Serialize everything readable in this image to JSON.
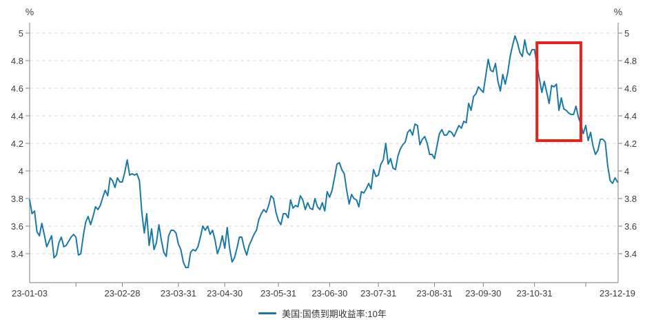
{
  "units": {
    "left": "%",
    "right": "%"
  },
  "legend": {
    "label": "美国:国债到期收益率:10年"
  },
  "colors": {
    "line": "#1878a8",
    "grid": "#d9d9d9",
    "axis": "#7f7f7f",
    "tick_label": "#3c3c3c",
    "unit_label": "#3c3c3c",
    "highlight": "#e8211a",
    "background": "#ffffff",
    "legend_text": "#333333"
  },
  "chart_data": {
    "type": "line",
    "title": "",
    "ylabel_unit": "%",
    "grid": "dashed-horizontal",
    "legend_position": "bottom-center",
    "ylim": [
      3.19,
      5.07
    ],
    "y_ticks": [
      {
        "value": 5.0,
        "label": "5"
      },
      {
        "value": 4.8,
        "label": "4.8"
      },
      {
        "value": 4.6,
        "label": "4.6"
      },
      {
        "value": 4.4,
        "label": "4.4"
      },
      {
        "value": 4.2,
        "label": "4.2"
      },
      {
        "value": 4.0,
        "label": "4"
      },
      {
        "value": 3.8,
        "label": "3.8"
      },
      {
        "value": 3.6,
        "label": "3.6"
      },
      {
        "value": 3.4,
        "label": "3.4"
      }
    ],
    "x_ticks": [
      {
        "label": "23-01-03",
        "date": "23-01-03",
        "show_tick": false
      },
      {
        "label": "",
        "date": "23-01-31",
        "show_tick": true
      },
      {
        "label": "23-02-28",
        "date": "23-02-28",
        "show_tick": true
      },
      {
        "label": "23-03-31",
        "date": "23-03-31",
        "show_tick": true
      },
      {
        "label": "23-04-30",
        "date": "23-04-28",
        "show_tick": true
      },
      {
        "label": "23-05-31",
        "date": "23-05-31",
        "show_tick": true
      },
      {
        "label": "23-06-30",
        "date": "23-06-30",
        "show_tick": true
      },
      {
        "label": "23-07-31",
        "date": "23-07-31",
        "show_tick": true
      },
      {
        "label": "23-08-31",
        "date": "23-08-31",
        "show_tick": true
      },
      {
        "label": "23-09-30",
        "date": "23-09-29",
        "show_tick": true
      },
      {
        "label": "23-10-31",
        "date": "23-10-31",
        "show_tick": true
      },
      {
        "label": "",
        "date": "23-11-30",
        "show_tick": true
      },
      {
        "label": "23-12-19",
        "date": "23-12-19",
        "show_tick": false
      }
    ],
    "highlight_box": {
      "start_date": "23-11-01",
      "end_date": "23-11-28",
      "value_top": 4.93,
      "value_bottom": 4.22
    },
    "series": [
      {
        "name": "美国:国债到期收益率:10年",
        "dates": [
          "23-01-03",
          "23-01-04",
          "23-01-05",
          "23-01-06",
          "23-01-09",
          "23-01-10",
          "23-01-11",
          "23-01-12",
          "23-01-13",
          "23-01-17",
          "23-01-18",
          "23-01-19",
          "23-01-20",
          "23-01-23",
          "23-01-24",
          "23-01-25",
          "23-01-26",
          "23-01-27",
          "23-01-30",
          "23-01-31",
          "23-02-01",
          "23-02-02",
          "23-02-03",
          "23-02-06",
          "23-02-07",
          "23-02-08",
          "23-02-09",
          "23-02-10",
          "23-02-13",
          "23-02-14",
          "23-02-15",
          "23-02-16",
          "23-02-17",
          "23-02-21",
          "23-02-22",
          "23-02-23",
          "23-02-24",
          "23-02-27",
          "23-02-28",
          "23-03-01",
          "23-03-02",
          "23-03-03",
          "23-03-06",
          "23-03-07",
          "23-03-08",
          "23-03-09",
          "23-03-10",
          "23-03-13",
          "23-03-14",
          "23-03-15",
          "23-03-16",
          "23-03-17",
          "23-03-20",
          "23-03-21",
          "23-03-22",
          "23-03-23",
          "23-03-24",
          "23-03-27",
          "23-03-28",
          "23-03-29",
          "23-03-30",
          "23-03-31",
          "23-04-03",
          "23-04-04",
          "23-04-05",
          "23-04-06",
          "23-04-10",
          "23-04-11",
          "23-04-12",
          "23-04-13",
          "23-04-14",
          "23-04-17",
          "23-04-18",
          "23-04-19",
          "23-04-20",
          "23-04-21",
          "23-04-24",
          "23-04-25",
          "23-04-26",
          "23-04-27",
          "23-04-28",
          "23-05-01",
          "23-05-02",
          "23-05-03",
          "23-05-04",
          "23-05-05",
          "23-05-08",
          "23-05-09",
          "23-05-10",
          "23-05-11",
          "23-05-12",
          "23-05-15",
          "23-05-16",
          "23-05-17",
          "23-05-18",
          "23-05-19",
          "23-05-22",
          "23-05-23",
          "23-05-24",
          "23-05-25",
          "23-05-26",
          "23-05-30",
          "23-05-31",
          "23-06-01",
          "23-06-02",
          "23-06-05",
          "23-06-06",
          "23-06-07",
          "23-06-08",
          "23-06-09",
          "23-06-12",
          "23-06-13",
          "23-06-14",
          "23-06-15",
          "23-06-16",
          "23-06-20",
          "23-06-21",
          "23-06-22",
          "23-06-23",
          "23-06-26",
          "23-06-27",
          "23-06-28",
          "23-06-29",
          "23-06-30",
          "23-07-03",
          "23-07-05",
          "23-07-06",
          "23-07-07",
          "23-07-10",
          "23-07-11",
          "23-07-12",
          "23-07-13",
          "23-07-14",
          "23-07-17",
          "23-07-18",
          "23-07-19",
          "23-07-20",
          "23-07-21",
          "23-07-24",
          "23-07-25",
          "23-07-26",
          "23-07-27",
          "23-07-28",
          "23-07-31",
          "23-08-01",
          "23-08-02",
          "23-08-03",
          "23-08-04",
          "23-08-07",
          "23-08-08",
          "23-08-09",
          "23-08-10",
          "23-08-11",
          "23-08-14",
          "23-08-15",
          "23-08-16",
          "23-08-17",
          "23-08-18",
          "23-08-21",
          "23-08-22",
          "23-08-23",
          "23-08-24",
          "23-08-25",
          "23-08-28",
          "23-08-29",
          "23-08-30",
          "23-08-31",
          "23-09-01",
          "23-09-05",
          "23-09-06",
          "23-09-07",
          "23-09-08",
          "23-09-11",
          "23-09-12",
          "23-09-13",
          "23-09-14",
          "23-09-15",
          "23-09-18",
          "23-09-19",
          "23-09-20",
          "23-09-21",
          "23-09-22",
          "23-09-25",
          "23-09-26",
          "23-09-27",
          "23-09-28",
          "23-09-29",
          "23-10-02",
          "23-10-03",
          "23-10-04",
          "23-10-05",
          "23-10-06",
          "23-10-10",
          "23-10-11",
          "23-10-12",
          "23-10-13",
          "23-10-16",
          "23-10-17",
          "23-10-18",
          "23-10-19",
          "23-10-20",
          "23-10-23",
          "23-10-24",
          "23-10-25",
          "23-10-26",
          "23-10-27",
          "23-10-30",
          "23-10-31",
          "23-11-01",
          "23-11-02",
          "23-11-03",
          "23-11-06",
          "23-11-07",
          "23-11-08",
          "23-11-09",
          "23-11-10",
          "23-11-13",
          "23-11-14",
          "23-11-15",
          "23-11-16",
          "23-11-17",
          "23-11-20",
          "23-11-21",
          "23-11-22",
          "23-11-24",
          "23-11-27",
          "23-11-28",
          "23-11-29",
          "23-11-30",
          "23-12-01",
          "23-12-04",
          "23-12-05",
          "23-12-06",
          "23-12-07",
          "23-12-08",
          "23-12-11",
          "23-12-12",
          "23-12-13",
          "23-12-14",
          "23-12-15",
          "23-12-18",
          "23-12-19"
        ],
        "values": [
          3.79,
          3.69,
          3.71,
          3.56,
          3.53,
          3.62,
          3.54,
          3.45,
          3.49,
          3.53,
          3.37,
          3.39,
          3.48,
          3.52,
          3.45,
          3.46,
          3.49,
          3.52,
          3.54,
          3.52,
          3.39,
          3.4,
          3.53,
          3.63,
          3.67,
          3.61,
          3.67,
          3.74,
          3.72,
          3.75,
          3.81,
          3.86,
          3.82,
          3.95,
          3.93,
          3.88,
          3.95,
          3.92,
          3.92,
          3.99,
          4.08,
          3.97,
          3.98,
          3.97,
          3.98,
          3.93,
          3.7,
          3.55,
          3.69,
          3.46,
          3.58,
          3.43,
          3.48,
          3.61,
          3.5,
          3.41,
          3.38,
          3.53,
          3.57,
          3.57,
          3.55,
          3.47,
          3.43,
          3.34,
          3.3,
          3.3,
          3.41,
          3.43,
          3.42,
          3.45,
          3.52,
          3.6,
          3.57,
          3.6,
          3.54,
          3.57,
          3.5,
          3.4,
          3.45,
          3.53,
          3.44,
          3.59,
          3.44,
          3.34,
          3.37,
          3.44,
          3.52,
          3.52,
          3.44,
          3.39,
          3.46,
          3.5,
          3.54,
          3.57,
          3.65,
          3.69,
          3.72,
          3.7,
          3.75,
          3.82,
          3.8,
          3.7,
          3.64,
          3.61,
          3.69,
          3.69,
          3.66,
          3.79,
          3.73,
          3.75,
          3.74,
          3.82,
          3.79,
          3.72,
          3.77,
          3.73,
          3.72,
          3.8,
          3.74,
          3.72,
          3.77,
          3.71,
          3.85,
          3.81,
          3.86,
          3.95,
          4.05,
          4.06,
          4.01,
          3.98,
          3.86,
          3.76,
          3.83,
          3.8,
          3.79,
          3.74,
          3.85,
          3.84,
          3.87,
          3.91,
          3.87,
          4.01,
          3.96,
          3.97,
          4.05,
          4.08,
          4.2,
          4.05,
          4.09,
          4.02,
          4.01,
          4.11,
          4.16,
          4.19,
          4.21,
          4.28,
          4.3,
          4.26,
          4.34,
          4.33,
          4.19,
          4.23,
          4.25,
          4.2,
          4.12,
          4.12,
          4.09,
          4.18,
          4.27,
          4.3,
          4.26,
          4.26,
          4.29,
          4.28,
          4.25,
          4.29,
          4.33,
          4.31,
          4.36,
          4.35,
          4.49,
          4.44,
          4.54,
          4.56,
          4.61,
          4.59,
          4.57,
          4.69,
          4.81,
          4.73,
          4.72,
          4.78,
          4.65,
          4.58,
          4.7,
          4.63,
          4.71,
          4.83,
          4.91,
          4.98,
          4.93,
          4.86,
          4.83,
          4.95,
          4.86,
          4.84,
          4.88,
          4.88,
          4.77,
          4.67,
          4.57,
          4.65,
          4.57,
          4.49,
          4.62,
          4.61,
          4.63,
          4.44,
          4.53,
          4.45,
          4.44,
          4.42,
          4.41,
          4.41,
          4.47,
          4.39,
          4.34,
          4.27,
          4.33,
          4.22,
          4.28,
          4.18,
          4.12,
          4.15,
          4.23,
          4.23,
          4.21,
          4.04,
          3.93,
          3.91,
          3.95,
          3.92
        ]
      }
    ]
  }
}
